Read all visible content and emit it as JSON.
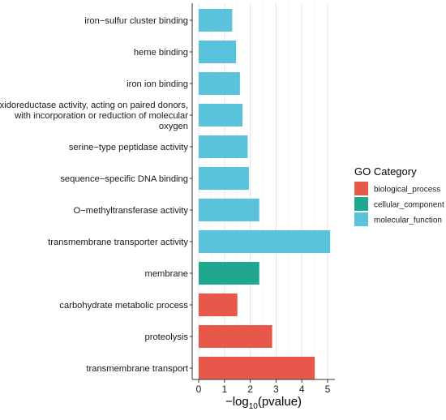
{
  "chart_data": {
    "type": "bar",
    "orientation": "horizontal",
    "categories": [
      "iron−sulfur cluster binding",
      "heme binding",
      "iron ion binding",
      "oxidoreductase activity, acting on paired donors, with incorporation or reduction of molecular oxygen",
      "serine−type peptidase activity",
      "sequence−specific DNA binding",
      "O−methyltransferase activity",
      "transmembrane transporter activity",
      "membrane",
      "carbohydrate metabolic process",
      "proteolysis",
      "transmembrane transport"
    ],
    "category_lines": [
      [
        "iron−sulfur cluster binding"
      ],
      [
        "heme binding"
      ],
      [
        "iron ion binding"
      ],
      [
        "oxidoreductase activity, acting on paired donors,",
        "with incorporation or reduction of molecular",
        "oxygen"
      ],
      [
        "serine−type peptidase activity"
      ],
      [
        "sequence−specific DNA binding"
      ],
      [
        "O−methyltransferase activity"
      ],
      [
        "transmembrane transporter activity"
      ],
      [
        "membrane"
      ],
      [
        "carbohydrate metabolic process"
      ],
      [
        "proteolysis"
      ],
      [
        "transmembrane transport"
      ]
    ],
    "values": [
      1.3,
      1.45,
      1.6,
      1.7,
      1.9,
      1.95,
      2.35,
      5.1,
      2.35,
      1.5,
      2.85,
      4.5
    ],
    "groups": [
      "molecular_function",
      "molecular_function",
      "molecular_function",
      "molecular_function",
      "molecular_function",
      "molecular_function",
      "molecular_function",
      "molecular_function",
      "cellular_component",
      "biological_process",
      "biological_process",
      "biological_process"
    ],
    "xlim": [
      0,
      5.2
    ],
    "xticks": [
      0,
      1,
      2,
      3,
      4,
      5
    ],
    "xlabel_prefix": "−log",
    "xlabel_sub": "10",
    "xlabel_suffix": "(pvalue)",
    "grid": true,
    "legend": {
      "title": "GO Category",
      "placement": "right",
      "entries": [
        {
          "name": "biological_process",
          "color": "#E8584A"
        },
        {
          "name": "cellular_component",
          "color": "#1FA88F"
        },
        {
          "name": "molecular_function",
          "color": "#5BC2DC"
        }
      ]
    },
    "colors": {
      "biological_process": "#E8584A",
      "cellular_component": "#1FA88F",
      "molecular_function": "#5BC2DC"
    }
  }
}
